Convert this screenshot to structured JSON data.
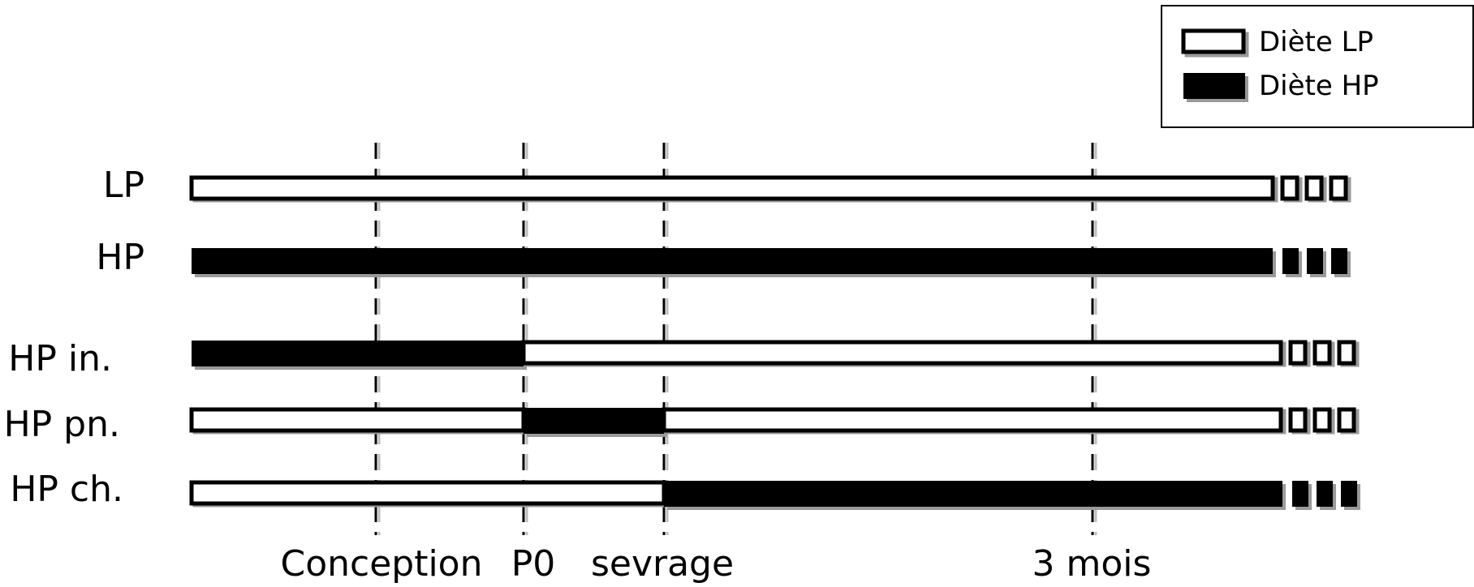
{
  "legend": {
    "items": [
      {
        "label": "Diète LP",
        "diet": "LP"
      },
      {
        "label": "Diète HP",
        "diet": "HP"
      }
    ]
  },
  "timeline": {
    "events": [
      {
        "key": "conception",
        "label": "Conception"
      },
      {
        "key": "p0",
        "label": "P0"
      },
      {
        "key": "sevrage",
        "label": "sevrage"
      },
      {
        "key": "m3",
        "label": "3 mois"
      }
    ]
  },
  "groups": [
    {
      "label": "LP",
      "segments": [
        {
          "diet": "LP",
          "from": "start",
          "to": "end"
        }
      ]
    },
    {
      "label": "HP",
      "segments": [
        {
          "diet": "HP",
          "from": "start",
          "to": "end"
        }
      ]
    },
    {
      "label": "HP in.",
      "segments": [
        {
          "diet": "HP",
          "from": "start",
          "to": "p0"
        },
        {
          "diet": "LP",
          "from": "p0",
          "to": "end"
        }
      ]
    },
    {
      "label": "HP pn.",
      "segments": [
        {
          "diet": "LP",
          "from": "start",
          "to": "p0"
        },
        {
          "diet": "HP",
          "from": "p0",
          "to": "sevrage"
        },
        {
          "diet": "LP",
          "from": "sevrage",
          "to": "end"
        }
      ]
    },
    {
      "label": "HP ch.",
      "segments": [
        {
          "diet": "LP",
          "from": "start",
          "to": "sevrage"
        },
        {
          "diet": "HP",
          "from": "sevrage",
          "to": "end"
        }
      ]
    }
  ]
}
